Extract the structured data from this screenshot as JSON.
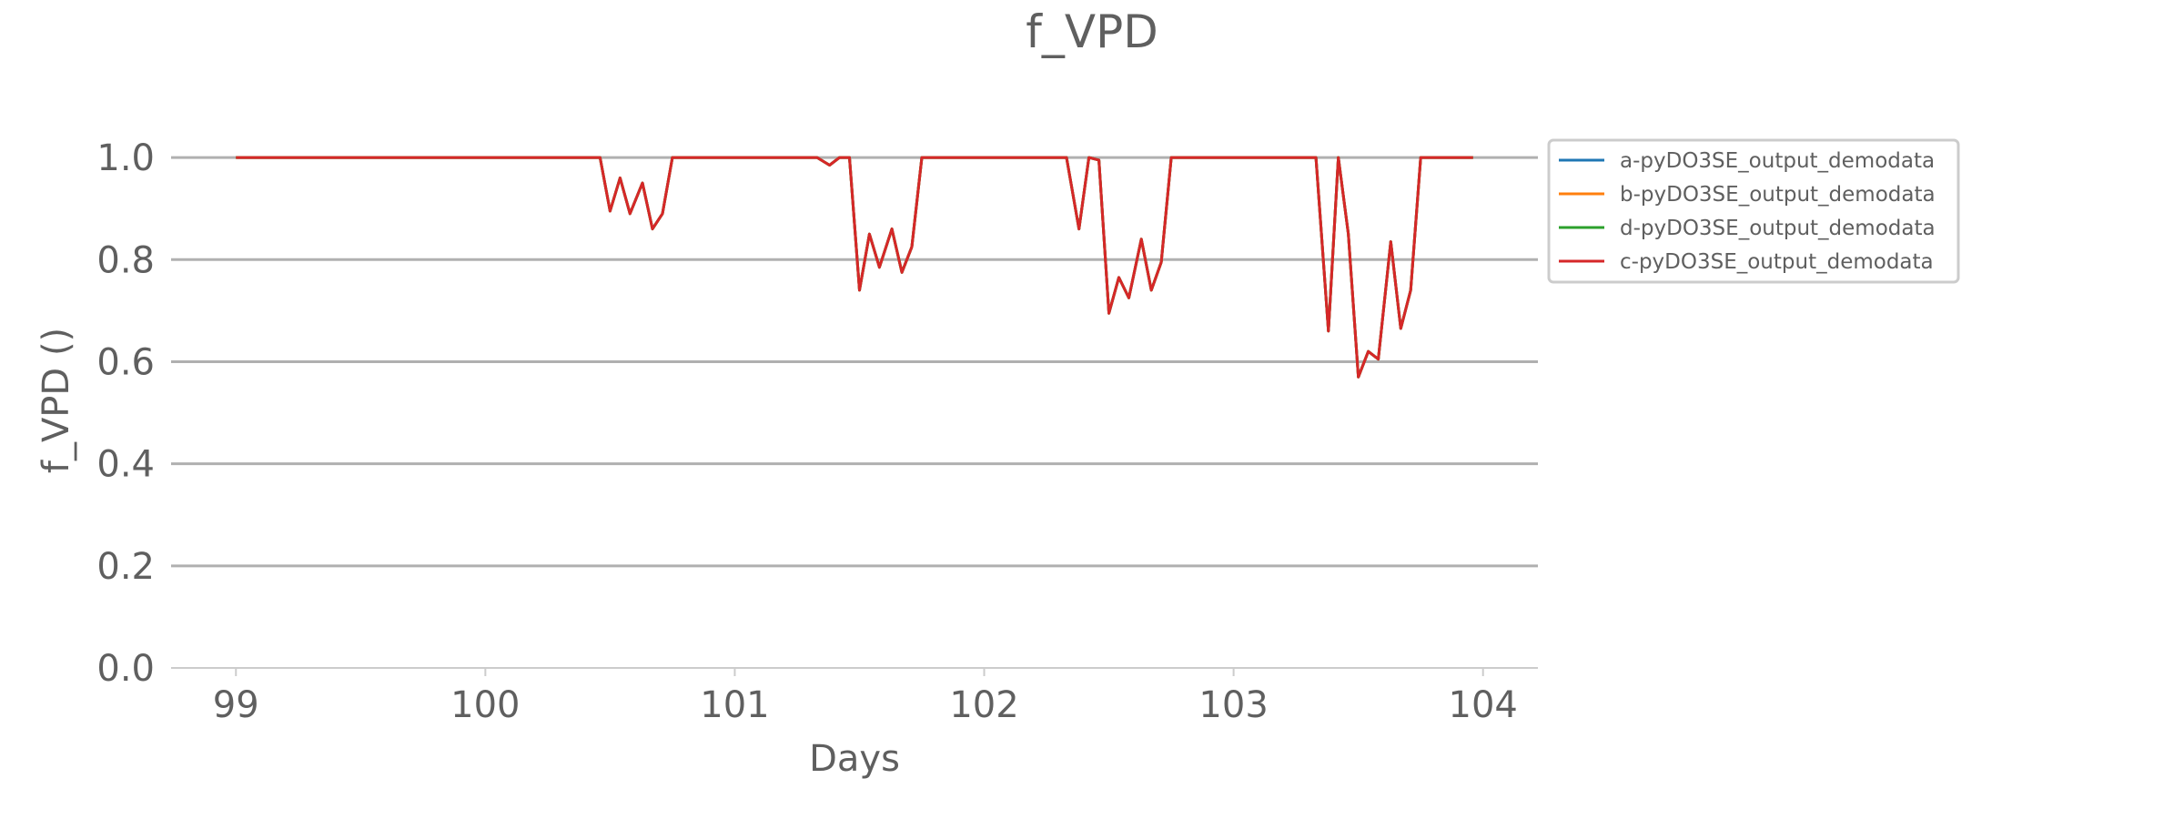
{
  "chart_data": {
    "type": "line",
    "title": "f_VPD",
    "xlabel": "Days",
    "ylabel": "f_VPD ()",
    "xlim": [
      98.74,
      104.22
    ],
    "ylim": [
      0.0,
      1.1
    ],
    "xticks": [
      99,
      100,
      101,
      102,
      103,
      104
    ],
    "yticks": [
      0.0,
      0.2,
      0.4,
      0.6,
      0.8,
      1.0
    ],
    "ytick_labels": [
      "0.0",
      "0.2",
      "0.4",
      "0.6",
      "0.8",
      "1.0"
    ],
    "grid": "horizontal",
    "legend_placement": "right, outside plot, top",
    "series": [
      {
        "name": "a-pyDO3SE_output_demodata",
        "color": "#1f77b4",
        "x": [
          99.0,
          100.46,
          100.5,
          100.54,
          100.58,
          100.63,
          100.67,
          100.71,
          100.75,
          101.33,
          101.38,
          101.42,
          101.46,
          101.5,
          101.54,
          101.58,
          101.63,
          101.67,
          101.71,
          101.75,
          102.33,
          102.38,
          102.42,
          102.46,
          102.5,
          102.54,
          102.58,
          102.63,
          102.67,
          102.71,
          102.75,
          103.33,
          103.38,
          103.42,
          103.46,
          103.5,
          103.54,
          103.58,
          103.63,
          103.67,
          103.71,
          103.75,
          103.96
        ],
        "y": [
          1.0,
          1.0,
          0.895,
          0.96,
          0.89,
          0.95,
          0.86,
          0.89,
          1.0,
          1.0,
          0.985,
          1.0,
          1.0,
          0.74,
          0.85,
          0.785,
          0.86,
          0.775,
          0.825,
          1.0,
          1.0,
          0.86,
          1.0,
          0.995,
          0.695,
          0.765,
          0.725,
          0.84,
          0.74,
          0.795,
          1.0,
          1.0,
          0.66,
          1.0,
          0.85,
          0.57,
          0.62,
          0.605,
          0.835,
          0.665,
          0.74,
          1.0,
          1.0
        ]
      },
      {
        "name": "b-pyDO3SE_output_demodata",
        "color": "#ff7f0e",
        "x": [
          99.0,
          100.46,
          100.5,
          100.54,
          100.58,
          100.63,
          100.67,
          100.71,
          100.75,
          101.33,
          101.38,
          101.42,
          101.46,
          101.5,
          101.54,
          101.58,
          101.63,
          101.67,
          101.71,
          101.75,
          102.33,
          102.38,
          102.42,
          102.46,
          102.5,
          102.54,
          102.58,
          102.63,
          102.67,
          102.71,
          102.75,
          103.33,
          103.38,
          103.42,
          103.46,
          103.5,
          103.54,
          103.58,
          103.63,
          103.67,
          103.71,
          103.75,
          103.96
        ],
        "y": [
          1.0,
          1.0,
          0.895,
          0.96,
          0.89,
          0.95,
          0.86,
          0.89,
          1.0,
          1.0,
          0.985,
          1.0,
          1.0,
          0.74,
          0.85,
          0.785,
          0.86,
          0.775,
          0.825,
          1.0,
          1.0,
          0.86,
          1.0,
          0.995,
          0.695,
          0.765,
          0.725,
          0.84,
          0.74,
          0.795,
          1.0,
          1.0,
          0.66,
          1.0,
          0.85,
          0.57,
          0.62,
          0.605,
          0.835,
          0.665,
          0.74,
          1.0,
          1.0
        ]
      },
      {
        "name": "d-pyDO3SE_output_demodata",
        "color": "#2ca02c",
        "x": [
          99.0,
          100.46,
          100.5,
          100.54,
          100.58,
          100.63,
          100.67,
          100.71,
          100.75,
          101.33,
          101.38,
          101.42,
          101.46,
          101.5,
          101.54,
          101.58,
          101.63,
          101.67,
          101.71,
          101.75,
          102.33,
          102.38,
          102.42,
          102.46,
          102.5,
          102.54,
          102.58,
          102.63,
          102.67,
          102.71,
          102.75,
          103.33,
          103.38,
          103.42,
          103.46,
          103.5,
          103.54,
          103.58,
          103.63,
          103.67,
          103.71,
          103.75,
          103.96
        ],
        "y": [
          1.0,
          1.0,
          0.895,
          0.96,
          0.89,
          0.95,
          0.86,
          0.89,
          1.0,
          1.0,
          0.985,
          1.0,
          1.0,
          0.74,
          0.85,
          0.785,
          0.86,
          0.775,
          0.825,
          1.0,
          1.0,
          0.86,
          1.0,
          0.995,
          0.695,
          0.765,
          0.725,
          0.84,
          0.74,
          0.795,
          1.0,
          1.0,
          0.66,
          1.0,
          0.85,
          0.57,
          0.62,
          0.605,
          0.835,
          0.665,
          0.74,
          1.0,
          1.0
        ]
      },
      {
        "name": "c-pyDO3SE_output_demodata",
        "color": "#d62728",
        "x": [
          99.0,
          100.46,
          100.5,
          100.54,
          100.58,
          100.63,
          100.67,
          100.71,
          100.75,
          101.33,
          101.38,
          101.42,
          101.46,
          101.5,
          101.54,
          101.58,
          101.63,
          101.67,
          101.71,
          101.75,
          102.33,
          102.38,
          102.42,
          102.46,
          102.5,
          102.54,
          102.58,
          102.63,
          102.67,
          102.71,
          102.75,
          103.33,
          103.38,
          103.42,
          103.46,
          103.5,
          103.54,
          103.58,
          103.63,
          103.67,
          103.71,
          103.75,
          103.96
        ],
        "y": [
          1.0,
          1.0,
          0.895,
          0.96,
          0.89,
          0.95,
          0.86,
          0.89,
          1.0,
          1.0,
          0.985,
          1.0,
          1.0,
          0.74,
          0.85,
          0.785,
          0.86,
          0.775,
          0.825,
          1.0,
          1.0,
          0.86,
          1.0,
          0.995,
          0.695,
          0.765,
          0.725,
          0.84,
          0.74,
          0.795,
          1.0,
          1.0,
          0.66,
          1.0,
          0.85,
          0.57,
          0.62,
          0.605,
          0.835,
          0.665,
          0.74,
          1.0,
          1.0
        ]
      }
    ]
  }
}
